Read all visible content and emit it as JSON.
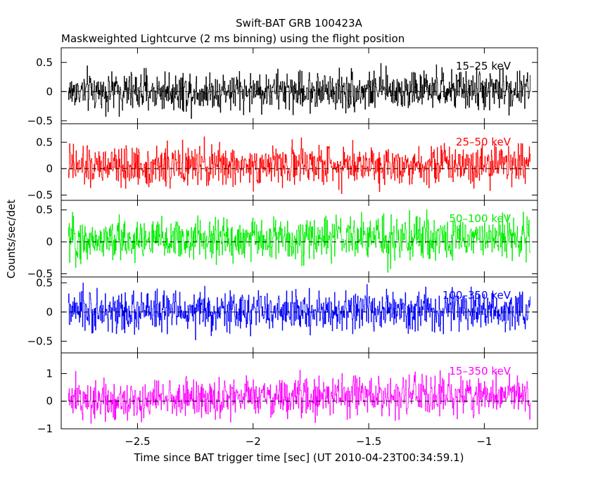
{
  "chart_data": {
    "type": "line",
    "title": "Swift-BAT GRB 100423A",
    "subtitle": "Maskweighted Lightcurve (2 ms binning) using the flight position",
    "xlabel": "Time since BAT trigger time [sec] (UT 2010-04-23T00:34:59.1)",
    "ylabel": "Counts/sec/det",
    "xlim": [
      -2.83,
      -0.77
    ],
    "x_ticks": [
      -2.5,
      -2,
      -1.5,
      -1
    ],
    "x_tick_labels": [
      "−2.5",
      "−2",
      "−1.5",
      "−1"
    ],
    "bin_width_sec": 0.002,
    "x_range_data": [
      -2.8,
      -0.8
    ],
    "grid": false,
    "panels": [
      {
        "band": "15–25 keV",
        "color": "#000000",
        "ylim": [
          -0.55,
          0.75
        ],
        "y_ticks": [
          -0.5,
          0,
          0.5
        ],
        "y_tick_labels": [
          "−0.5",
          "0",
          "0.5"
        ],
        "mean": 0.0,
        "trend": 0.03,
        "amplitude": 0.17
      },
      {
        "band": "25–50 keV",
        "color": "#ff0000",
        "ylim": [
          -0.6,
          0.85
        ],
        "y_ticks": [
          -0.5,
          0,
          0.5
        ],
        "y_tick_labels": [
          "−0.5",
          "0",
          "0.5"
        ],
        "mean": 0.03,
        "trend": 0.08,
        "amplitude": 0.19
      },
      {
        "band": "50–100 keV",
        "color": "#00ee00",
        "ylim": [
          -0.55,
          0.65
        ],
        "y_ticks": [
          -0.5,
          0,
          0.5
        ],
        "y_tick_labels": [
          "−0.5",
          "0",
          "0.5"
        ],
        "mean": 0.02,
        "trend": 0.05,
        "amplitude": 0.17
      },
      {
        "band": "100–350 keV",
        "color": "#0000ff",
        "ylim": [
          -0.7,
          0.6
        ],
        "y_ticks": [
          -0.5,
          0,
          0.5
        ],
        "y_tick_labels": [
          "−0.5",
          "0",
          "0.5"
        ],
        "mean": 0.0,
        "trend": 0.02,
        "amplitude": 0.17
      },
      {
        "band": "15–350 keV",
        "color": "#ff00ff",
        "ylim": [
          -1,
          1.75
        ],
        "y_ticks": [
          -1,
          0,
          1
        ],
        "y_tick_labels": [
          "−1",
          "0",
          "1"
        ],
        "mean": 0.05,
        "trend": 0.2,
        "amplitude": 0.36
      }
    ]
  }
}
